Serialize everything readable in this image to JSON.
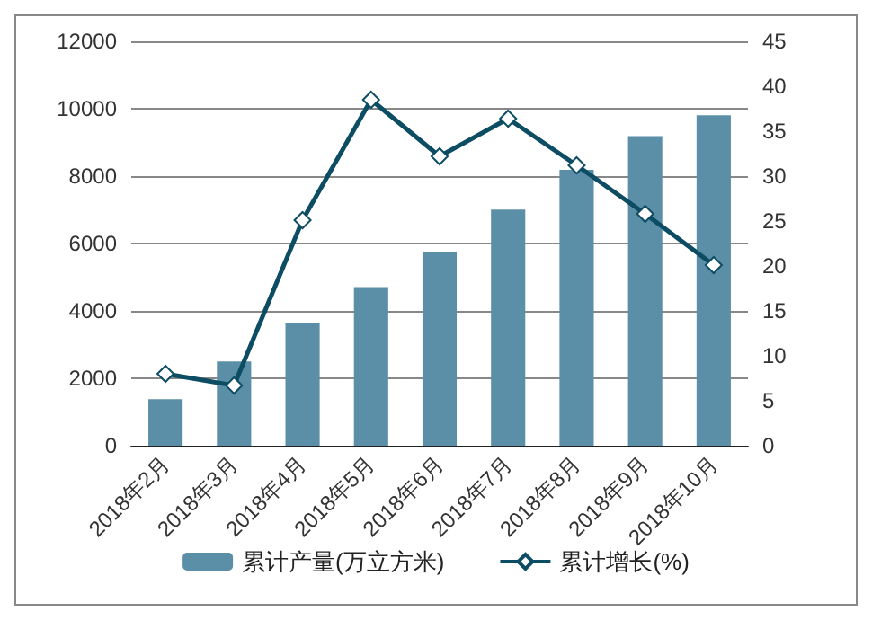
{
  "chart_data": {
    "type": "bar",
    "categories": [
      "2018年2月",
      "2018年3月",
      "2018年4月",
      "2018年5月",
      "2018年6月",
      "2018年7月",
      "2018年8月",
      "2018年9月",
      "2018年10月"
    ],
    "series": [
      {
        "name": "累计产量(万立方米)",
        "color": "#5b8fa8",
        "values": [
          1380,
          2500,
          3630,
          4710,
          5740,
          7010,
          8190,
          9190,
          9810
        ]
      },
      {
        "name": "累计增长(%)",
        "type": "line",
        "axis": "y2",
        "color": "#0d4d63",
        "marker": "diamond",
        "values": [
          8.0,
          6.7,
          25.1,
          38.5,
          32.2,
          36.4,
          31.2,
          25.8,
          20.1
        ]
      }
    ],
    "ylim": [
      0,
      12000
    ],
    "yticks": [
      0,
      2000,
      4000,
      6000,
      8000,
      10000,
      12000
    ],
    "y2lim": [
      0,
      45
    ],
    "y2ticks": [
      0,
      5,
      10,
      15,
      20,
      25,
      30,
      35,
      40,
      45
    ],
    "grid": "y",
    "legend": "bottom"
  }
}
